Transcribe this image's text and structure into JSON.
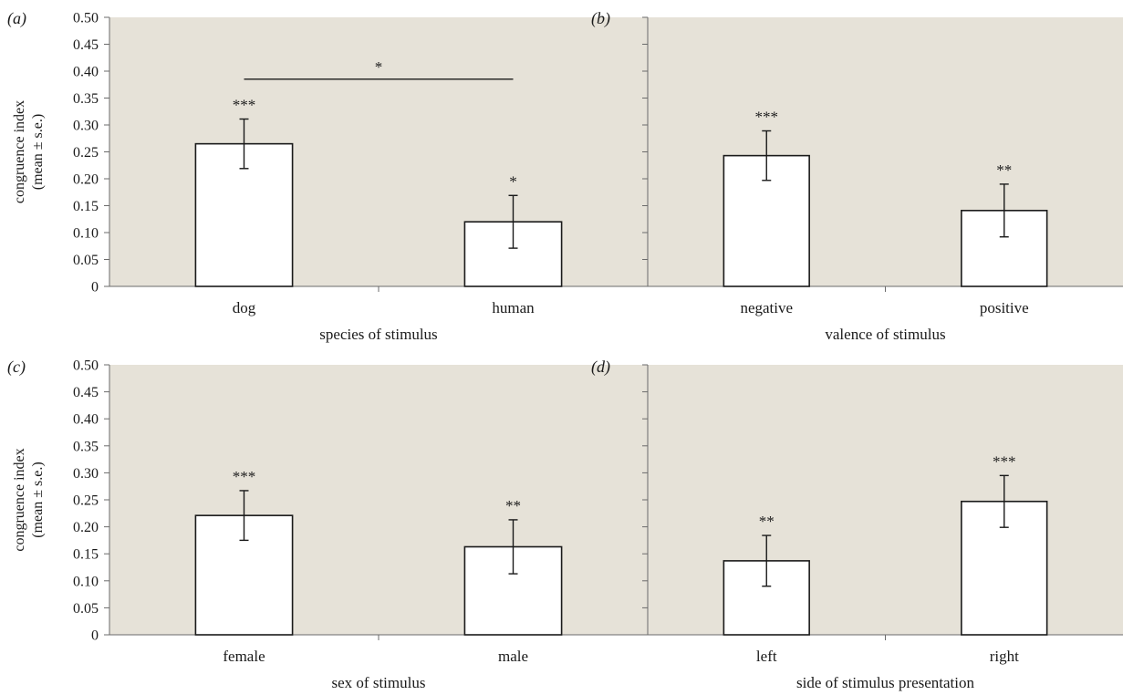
{
  "colors": {
    "plot_background": "#e6e2d8",
    "bar_fill": "#ffffff",
    "bar_edge": "#1a1a1a",
    "axis": "#6b6b6b"
  },
  "chart_data": [
    {
      "panel": "(a)",
      "type": "bar",
      "categories": [
        "dog",
        "human"
      ],
      "values": [
        0.265,
        0.12
      ],
      "errors": [
        0.046,
        0.049
      ],
      "significance": [
        "***",
        "*"
      ],
      "comparison": {
        "between": [
          "dog",
          "human"
        ],
        "y": 0.385,
        "label": "*"
      },
      "xlabel": "species of stimulus",
      "ylabel_lines": [
        "congruence index",
        "(mean ± s.e.)"
      ],
      "ylim": [
        0,
        0.5
      ],
      "yticks": [
        "0",
        "0.05",
        "0.10",
        "0.15",
        "0.20",
        "0.25",
        "0.30",
        "0.35",
        "0.40",
        "0.45",
        "0.50"
      ],
      "show_tick_labels": true
    },
    {
      "panel": "(b)",
      "type": "bar",
      "categories": [
        "negative",
        "positive"
      ],
      "values": [
        0.243,
        0.141
      ],
      "errors": [
        0.046,
        0.049
      ],
      "significance": [
        "***",
        "**"
      ],
      "xlabel": "valence of stimulus",
      "ylim": [
        0,
        0.5
      ],
      "show_tick_labels": false
    },
    {
      "panel": "(c)",
      "type": "bar",
      "categories": [
        "female",
        "male"
      ],
      "values": [
        0.221,
        0.163
      ],
      "errors": [
        0.046,
        0.05
      ],
      "significance": [
        "***",
        "**"
      ],
      "xlabel": "sex of stimulus",
      "ylabel_lines": [
        "congruence index",
        "(mean ± s.e.)"
      ],
      "ylim": [
        0,
        0.5
      ],
      "yticks": [
        "0",
        "0.05",
        "0.10",
        "0.15",
        "0.20",
        "0.25",
        "0.30",
        "0.35",
        "0.40",
        "0.45",
        "0.50"
      ],
      "show_tick_labels": true
    },
    {
      "panel": "(d)",
      "type": "bar",
      "categories": [
        "left",
        "right"
      ],
      "values": [
        0.137,
        0.247
      ],
      "errors": [
        0.047,
        0.048
      ],
      "significance": [
        "**",
        "***"
      ],
      "xlabel": "side of stimulus presentation",
      "ylim": [
        0,
        0.5
      ],
      "show_tick_labels": false
    }
  ]
}
